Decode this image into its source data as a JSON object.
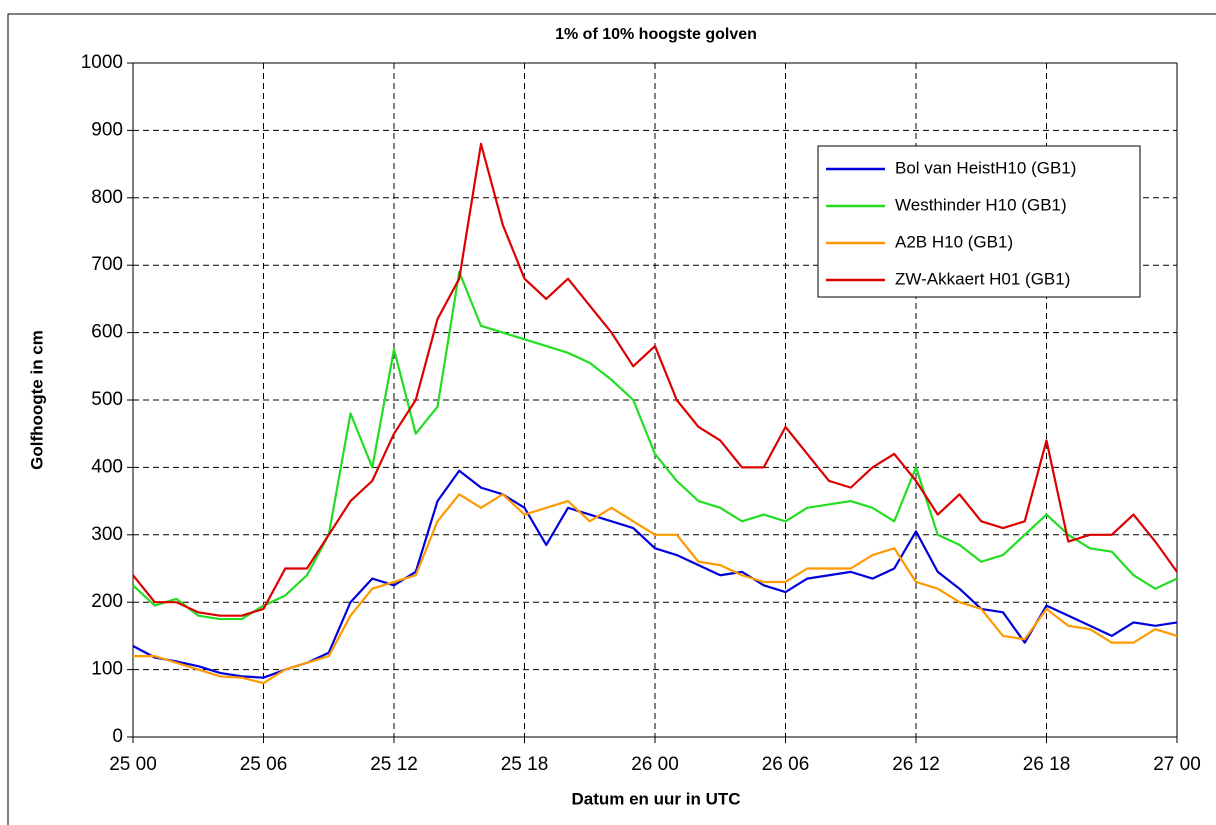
{
  "chart_data": {
    "type": "line",
    "title": "1% of 10% hoogste golven",
    "xlabel": "Datum en uur in UTC",
    "ylabel": "Golfhoogte in cm",
    "x": [
      0,
      1,
      2,
      3,
      4,
      5,
      6,
      7,
      8,
      9,
      10,
      11,
      12,
      13,
      14,
      15,
      16,
      17,
      18,
      19,
      20,
      21,
      22,
      23,
      24,
      25,
      26,
      27,
      28,
      29,
      30,
      31,
      32,
      33,
      34,
      35,
      36,
      37,
      38,
      39,
      40,
      41,
      42,
      43,
      44,
      45,
      46,
      47,
      48
    ],
    "xlim": [
      0,
      48
    ],
    "xticks": [
      {
        "value": 0,
        "label": "25 00"
      },
      {
        "value": 6,
        "label": "25 06"
      },
      {
        "value": 12,
        "label": "25 12"
      },
      {
        "value": 18,
        "label": "25 18"
      },
      {
        "value": 24,
        "label": "26 00"
      },
      {
        "value": 30,
        "label": "26 06"
      },
      {
        "value": 36,
        "label": "26 12"
      },
      {
        "value": 42,
        "label": "26 18"
      },
      {
        "value": 48,
        "label": "27 00"
      }
    ],
    "ylim": [
      0,
      1000
    ],
    "yticks": [
      0,
      100,
      200,
      300,
      400,
      500,
      600,
      700,
      800,
      900,
      1000
    ],
    "grid": true,
    "legend": "upper right",
    "series": [
      {
        "name": "Bol van HeistH10 (GB1)",
        "color": "#0000dd",
        "values": [
          135,
          118,
          112,
          105,
          95,
          90,
          88,
          100,
          110,
          125,
          200,
          235,
          225,
          245,
          350,
          395,
          370,
          360,
          340,
          285,
          340,
          330,
          320,
          310,
          280,
          270,
          255,
          240,
          245,
          225,
          215,
          235,
          240,
          245,
          235,
          250,
          305,
          245,
          220,
          190,
          185,
          140,
          195,
          180,
          165,
          150,
          170,
          165,
          170
        ]
      },
      {
        "name": "Westhinder H10 (GB1)",
        "color": "#22dd22",
        "values": [
          225,
          195,
          205,
          180,
          175,
          175,
          195,
          210,
          240,
          300,
          480,
          400,
          575,
          450,
          490,
          690,
          610,
          600,
          590,
          580,
          570,
          555,
          530,
          500,
          420,
          380,
          350,
          340,
          320,
          330,
          320,
          340,
          345,
          350,
          340,
          320,
          400,
          300,
          285,
          260,
          270,
          300,
          330,
          300,
          280,
          275,
          240,
          220,
          235
        ]
      },
      {
        "name": "A2B H10 (GB1)",
        "color": "#ff9900",
        "values": [
          120,
          120,
          110,
          100,
          90,
          88,
          80,
          100,
          110,
          120,
          180,
          220,
          230,
          240,
          320,
          360,
          340,
          360,
          330,
          340,
          350,
          320,
          340,
          320,
          300,
          300,
          260,
          255,
          240,
          230,
          230,
          250,
          250,
          250,
          270,
          280,
          230,
          220,
          200,
          190,
          150,
          145,
          190,
          165,
          160,
          140,
          140,
          160,
          150
        ]
      },
      {
        "name": "ZW-Akkaert H01 (GB1)",
        "color": "#dd0000",
        "values": [
          240,
          200,
          200,
          185,
          180,
          180,
          190,
          250,
          250,
          300,
          350,
          380,
          450,
          500,
          620,
          680,
          880,
          760,
          680,
          650,
          680,
          640,
          600,
          550,
          580,
          500,
          460,
          440,
          400,
          400,
          460,
          420,
          380,
          370,
          400,
          420,
          380,
          330,
          360,
          320,
          310,
          320,
          440,
          290,
          300,
          300,
          330,
          290,
          245
        ]
      }
    ]
  }
}
